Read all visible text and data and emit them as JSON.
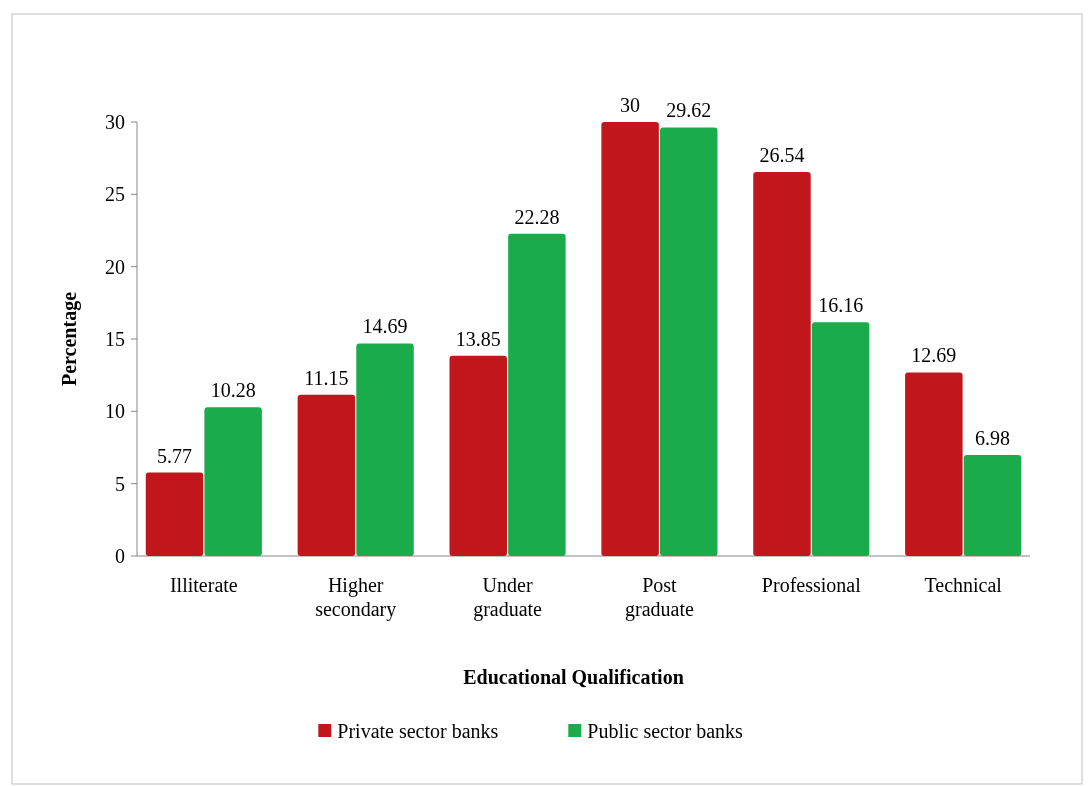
{
  "chart_data": {
    "type": "bar",
    "xlabel": "Educational Qualification",
    "ylabel": "Percentage",
    "categories": [
      "Illiterate",
      "Higher secondary",
      "Under graduate",
      "Post graduate",
      "Professional",
      "Technical"
    ],
    "series": [
      {
        "name": "Private sector banks",
        "color": "#c0161c",
        "values": [
          5.77,
          11.15,
          13.85,
          30,
          26.54,
          12.69
        ]
      },
      {
        "name": "Public sector banks",
        "color": "#1aab4a",
        "values": [
          10.28,
          14.69,
          22.28,
          29.62,
          16.16,
          6.98
        ]
      }
    ],
    "ylim": [
      0,
      30
    ],
    "yticks": [
      0,
      5,
      10,
      15,
      20,
      25,
      30
    ],
    "data_labels": true,
    "legend": "bottom",
    "grid": false
  }
}
